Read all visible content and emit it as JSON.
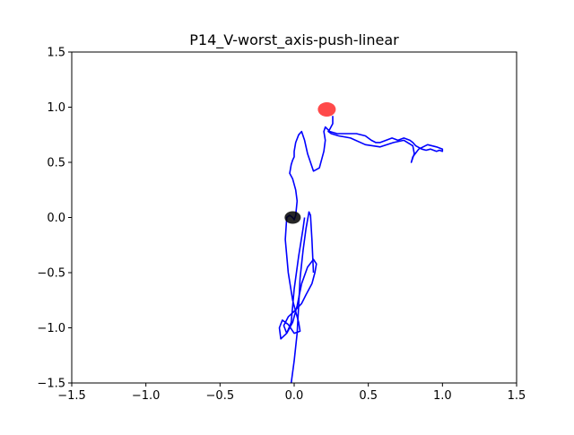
{
  "chart_data": {
    "type": "line",
    "title": "P14_V-worst_axis-push-linear",
    "xlabel": "",
    "ylabel": "",
    "xlim": [
      -1.5,
      1.5
    ],
    "ylim": [
      -1.5,
      1.5
    ],
    "x_ticks": [
      -1.5,
      -1.0,
      -0.5,
      0.0,
      0.5,
      1.0,
      1.5
    ],
    "x_tick_labels": [
      "−1.5",
      "−1.0",
      "−0.5",
      "0.0",
      "0.5",
      "1.0",
      "1.5"
    ],
    "y_ticks": [
      -1.5,
      -1.0,
      -0.5,
      0.0,
      0.5,
      1.0,
      1.5
    ],
    "y_tick_labels": [
      "−1.5",
      "−1.0",
      "−0.5",
      "0.0",
      "0.5",
      "1.0",
      "1.5"
    ],
    "grid": false,
    "legend": "none",
    "colors": {
      "trajectory": "#0000ff",
      "start_marker": "#000000",
      "goal_marker": "#ff2a2a"
    },
    "start_point": {
      "x": -0.01,
      "y": 0.0
    },
    "goal_point": {
      "x": 0.22,
      "y": 0.98
    },
    "series": [
      {
        "x": [
          0.07,
          0.06,
          0.03,
          0.0,
          -0.02,
          -0.05,
          -0.07,
          -0.04,
          0.0,
          0.05,
          0.08,
          0.12,
          0.14,
          0.15,
          0.13,
          0.09,
          0.05,
          0.02,
          -0.01,
          -0.05,
          -0.09,
          -0.1,
          -0.08,
          -0.04,
          0.0,
          0.04,
          0.03,
          -0.01,
          -0.04,
          -0.06,
          -0.05,
          -0.03,
          -0.01,
          0.0,
          0.01,
          0.02,
          0.01,
          0.0,
          -0.01,
          -0.03,
          -0.02,
          -0.01,
          0.0,
          0.0,
          0.01,
          0.03,
          0.05,
          0.07,
          0.09,
          0.13,
          0.17,
          0.2,
          0.21,
          0.2,
          0.21,
          0.24,
          0.29,
          0.35,
          0.42,
          0.48,
          0.52,
          0.55,
          0.58,
          0.62,
          0.66,
          0.7,
          0.74,
          0.78,
          0.8,
          0.82,
          0.86,
          0.89,
          0.92,
          0.96,
          0.98,
          1.0,
          1.0,
          0.96,
          0.9,
          0.84,
          0.8,
          0.79,
          0.81,
          0.8,
          0.74,
          0.67,
          0.58,
          0.48,
          0.38,
          0.3,
          0.25,
          0.23,
          0.24,
          0.26,
          0.26
        ],
        "y": [
          0.0,
          -0.1,
          -0.35,
          -0.65,
          -0.95,
          -1.05,
          -0.98,
          -0.9,
          -0.85,
          -0.78,
          -0.7,
          -0.6,
          -0.5,
          -0.42,
          -0.38,
          -0.45,
          -0.6,
          -0.8,
          -0.95,
          -1.05,
          -1.1,
          -1.0,
          -0.93,
          -0.97,
          -1.05,
          -1.03,
          -0.95,
          -0.75,
          -0.5,
          -0.2,
          0.0,
          0.02,
          0.0,
          -0.02,
          0.02,
          0.15,
          0.25,
          0.3,
          0.35,
          0.4,
          0.48,
          0.52,
          0.55,
          0.6,
          0.68,
          0.75,
          0.78,
          0.7,
          0.58,
          0.42,
          0.45,
          0.6,
          0.7,
          0.78,
          0.82,
          0.78,
          0.76,
          0.76,
          0.76,
          0.74,
          0.7,
          0.68,
          0.68,
          0.7,
          0.72,
          0.7,
          0.72,
          0.7,
          0.68,
          0.65,
          0.62,
          0.61,
          0.62,
          0.6,
          0.61,
          0.6,
          0.62,
          0.64,
          0.66,
          0.62,
          0.55,
          0.5,
          0.58,
          0.65,
          0.7,
          0.68,
          0.64,
          0.66,
          0.72,
          0.74,
          0.76,
          0.78,
          0.8,
          0.85,
          0.92
        ]
      },
      {
        "x": [
          -0.02,
          0.0,
          0.02,
          0.03,
          0.04,
          0.06,
          0.08,
          0.1,
          0.11,
          0.12,
          0.13
        ],
        "y": [
          -1.5,
          -1.3,
          -1.05,
          -0.8,
          -0.55,
          -0.3,
          -0.1,
          0.05,
          0.02,
          -0.2,
          -0.5
        ]
      }
    ]
  }
}
